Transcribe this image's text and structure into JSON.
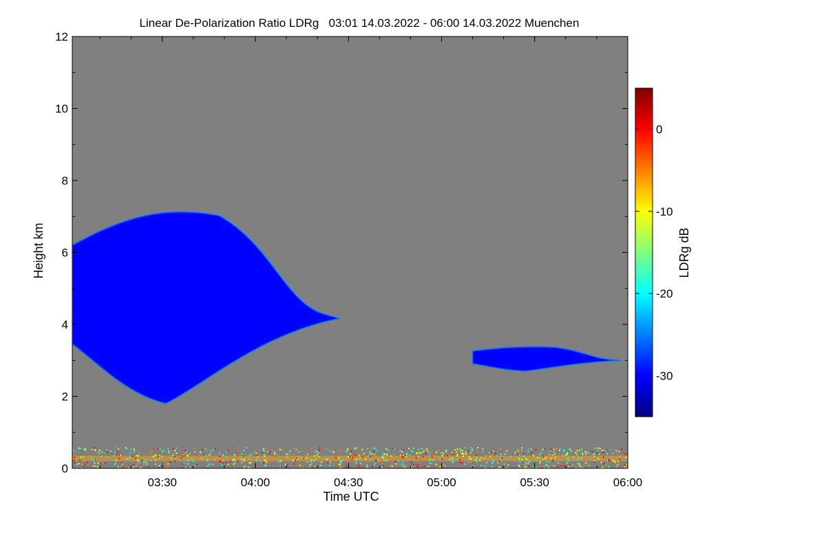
{
  "chart_data": {
    "type": "heatmap",
    "title": "Linear De-Polarization Ratio LDRg   03:01 14.03.2022 - 06:00 14.03.2022 Muenchen",
    "xlabel": "Time UTC",
    "ylabel": "Height km",
    "xlim": [
      "03:01",
      "06:00"
    ],
    "ylim": [
      0,
      12
    ],
    "x_ticks": [
      "03:30",
      "04:00",
      "04:30",
      "05:00",
      "05:30",
      "06:00"
    ],
    "y_ticks": [
      "0",
      "2",
      "4",
      "6",
      "8",
      "10",
      "12"
    ],
    "background_color": "#808080",
    "colorbar": {
      "label": "LDRg dB",
      "range": [
        -35,
        5
      ],
      "ticks": [
        "0",
        "-10",
        "-20",
        "-30"
      ],
      "colormap": [
        "#00007f",
        "#0000ff",
        "#007fff",
        "#00ffff",
        "#7fff7f",
        "#ffff00",
        "#ff7f00",
        "#ff0000",
        "#7f0000"
      ]
    },
    "features": [
      {
        "name": "cloud",
        "time_start": "03:01",
        "time_end": "04:27",
        "height_min_km": 1.8,
        "height_max_km": 7.3,
        "ldr_db": -30
      },
      {
        "name": "cloud",
        "time_start": "05:10",
        "time_end": "05:58",
        "height_min_km": 2.7,
        "height_max_km": 3.4,
        "ldr_db": -30
      },
      {
        "name": "boundary-layer",
        "time_start": "03:01",
        "time_end": "06:00",
        "height_min_km": 0,
        "height_max_km": 0.6,
        "ldr_db": -5
      }
    ]
  }
}
